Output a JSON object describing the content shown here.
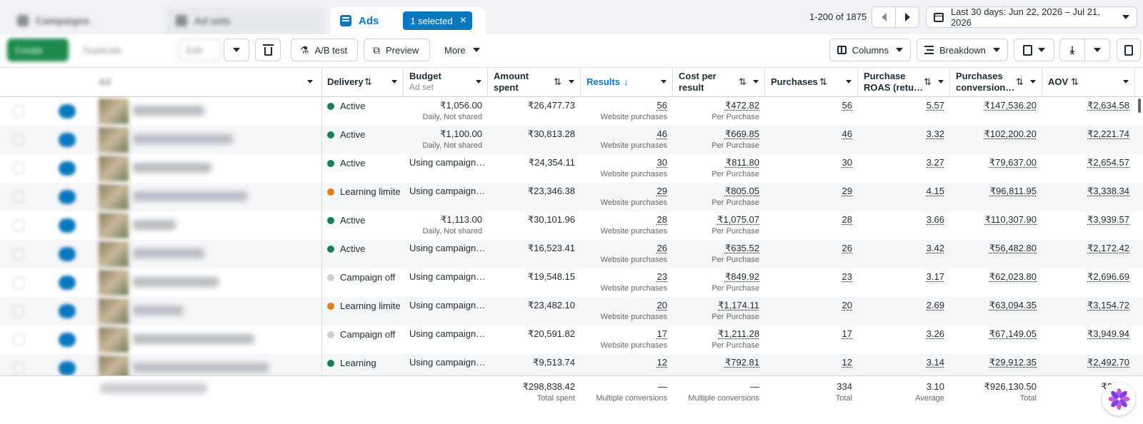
{
  "tabs": {
    "campaigns_label": "Campaigns",
    "adsets_label": "Ad sets",
    "ads_label": "Ads",
    "selected_label": "1 selected"
  },
  "pager": {
    "range_text": "1-200 of 1875"
  },
  "date_range": {
    "label": "Last 30 days: Jun 22, 2026 – Jul 21, 2026"
  },
  "toolbar": {
    "create_label": "Create",
    "duplicate_label": "Duplicate",
    "edit_label": "Edit",
    "ab_test_label": "A/B test",
    "preview_label": "Preview",
    "more_label": "More",
    "columns_label": "Columns",
    "breakdown_label": "Breakdown"
  },
  "columns": {
    "ad_name": "Ad",
    "delivery": "Delivery",
    "budget": "Budget",
    "budget_sub": "Ad set",
    "amount_spent_1": "Amount",
    "amount_spent_2": "spent",
    "results": "Results",
    "cost_per_result_1": "Cost per",
    "cost_per_result_2": "result",
    "purchases": "Purchases",
    "roas_1": "Purchase",
    "roas_2": "ROAS (retu…",
    "conv_1": "Purchases",
    "conv_2": "conversion…",
    "aov": "AOV"
  },
  "colors": {
    "accent": "#0a78be",
    "active": "#1b7e55",
    "learning_limited": "#e07f12",
    "off": "#ccd0d5"
  },
  "rows": [
    {
      "delivery": "Active",
      "status": "active",
      "budget": "₹1,056.00",
      "budget_sub": "Daily, Not shared",
      "spent": "₹26,477.73",
      "results": "56",
      "results_sub": "Website purchases",
      "cpr": "₹472.82",
      "cpr_sub": "Per Purchase",
      "purchases": "56",
      "roas": "5.57",
      "conv": "₹147,536.20",
      "aov": "₹2,634.58"
    },
    {
      "delivery": "Active",
      "status": "active",
      "budget": "₹1,100.00",
      "budget_sub": "Daily, Not shared",
      "spent": "₹30,813.28",
      "results": "46",
      "results_sub": "Website purchases",
      "cpr": "₹669.85",
      "cpr_sub": "Per Purchase",
      "purchases": "46",
      "roas": "3.32",
      "conv": "₹102,200.20",
      "aov": "₹2,221.74"
    },
    {
      "delivery": "Active",
      "status": "active",
      "budget": "Using campaign…",
      "budget_sub": "",
      "spent": "₹24,354.11",
      "results": "30",
      "results_sub": "Website purchases",
      "cpr": "₹811.80",
      "cpr_sub": "Per Purchase",
      "purchases": "30",
      "roas": "3.27",
      "conv": "₹79,637.00",
      "aov": "₹2,654.57"
    },
    {
      "delivery": "Learning limite",
      "status": "limited",
      "budget": "Using campaign…",
      "budget_sub": "",
      "spent": "₹23,346.38",
      "results": "29",
      "results_sub": "Website purchases",
      "cpr": "₹805.05",
      "cpr_sub": "Per Purchase",
      "purchases": "29",
      "roas": "4.15",
      "conv": "₹96,811.95",
      "aov": "₹3,338.34"
    },
    {
      "delivery": "Active",
      "status": "active",
      "budget": "₹1,113.00",
      "budget_sub": "Daily, Not shared",
      "spent": "₹30,101.96",
      "results": "28",
      "results_sub": "Website purchases",
      "cpr": "₹1,075.07",
      "cpr_sub": "Per Purchase",
      "purchases": "28",
      "roas": "3.66",
      "conv": "₹110,307.90",
      "aov": "₹3,939.57"
    },
    {
      "delivery": "Active",
      "status": "active",
      "budget": "Using campaign…",
      "budget_sub": "",
      "spent": "₹16,523.41",
      "results": "26",
      "results_sub": "Website purchases",
      "cpr": "₹635.52",
      "cpr_sub": "Per Purchase",
      "purchases": "26",
      "roas": "3.42",
      "conv": "₹56,482.80",
      "aov": "₹2,172.42"
    },
    {
      "delivery": "Campaign off",
      "status": "off",
      "budget": "Using campaign…",
      "budget_sub": "",
      "spent": "₹19,548.15",
      "results": "23",
      "results_sub": "Website purchases",
      "cpr": "₹849.92",
      "cpr_sub": "Per Purchase",
      "purchases": "23",
      "roas": "3.17",
      "conv": "₹62,023.80",
      "aov": "₹2,696.69"
    },
    {
      "delivery": "Learning limite",
      "status": "limited",
      "budget": "Using campaign…",
      "budget_sub": "",
      "spent": "₹23,482.10",
      "results": "20",
      "results_sub": "Website purchases",
      "cpr": "₹1,174.11",
      "cpr_sub": "Per Purchase",
      "purchases": "20",
      "roas": "2.69",
      "conv": "₹63,094.35",
      "aov": "₹3,154.72"
    },
    {
      "delivery": "Campaign off",
      "status": "off",
      "budget": "Using campaign…",
      "budget_sub": "",
      "spent": "₹20,591.82",
      "results": "17",
      "results_sub": "Website purchases",
      "cpr": "₹1,211.28",
      "cpr_sub": "Per Purchase",
      "purchases": "17",
      "roas": "3.26",
      "conv": "₹67,149.05",
      "aov": "₹3,949.94"
    },
    {
      "delivery": "Learning",
      "status": "active",
      "budget": "Using campaign…",
      "budget_sub": "",
      "spent": "₹9,513.74",
      "results": "12",
      "results_sub": "",
      "cpr": "₹792.81",
      "cpr_sub": "",
      "purchases": "12",
      "roas": "3.14",
      "conv": "₹29,912.35",
      "aov": "₹2,492.70"
    }
  ],
  "totals": {
    "spent": "₹298,838.42",
    "spent_sub": "Total spent",
    "results": "—",
    "results_sub": "Multiple conversions",
    "cpr": "—",
    "cpr_sub": "Multiple conversions",
    "purchases": "334",
    "purchases_sub": "Total",
    "roas": "3.10",
    "roas_sub": "Average",
    "conv": "₹926,130.50",
    "conv_sub": "Total",
    "aov": "₹2,7…"
  }
}
